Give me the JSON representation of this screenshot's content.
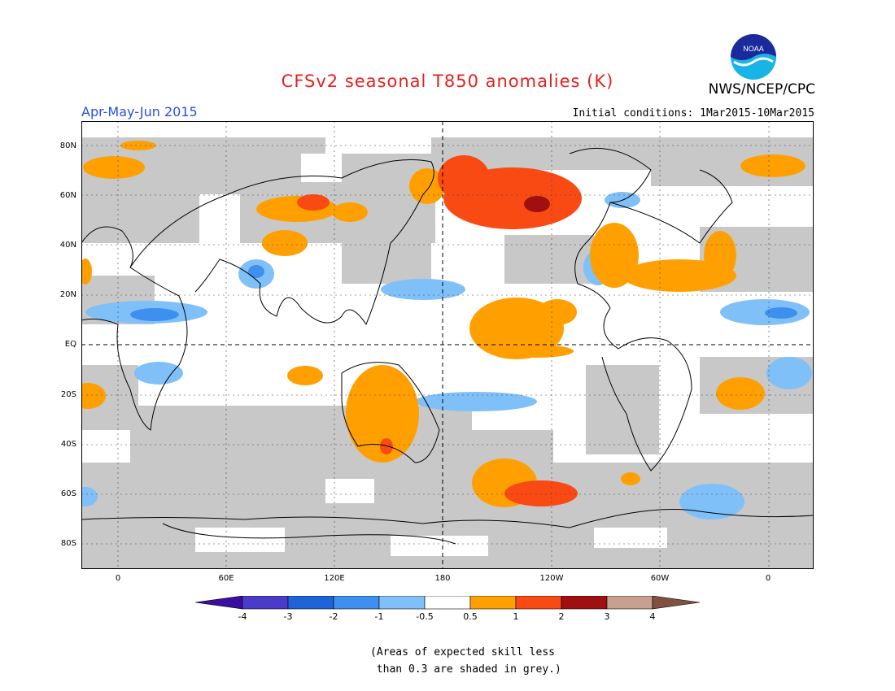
{
  "header": {
    "title": "CFSv2 seasonal T850 anomalies (K)",
    "agency": "NWS/NCEP/CPC",
    "logo_text": "NOAA",
    "season": "Apr-May-Jun 2015",
    "initial_conditions": "Initial conditions: 1Mar2015-10Mar2015"
  },
  "axes": {
    "lat_labels": [
      "80N",
      "60N",
      "40N",
      "20N",
      "EQ",
      "20S",
      "40S",
      "60S",
      "80S"
    ],
    "lon_labels": [
      "0",
      "60E",
      "120E",
      "180",
      "120W",
      "60W",
      "0"
    ]
  },
  "colorbar": {
    "labels": [
      "-4",
      "-3",
      "-2",
      "-1",
      "-0.5",
      "0.5",
      "1",
      "2",
      "3",
      "4"
    ],
    "colors": [
      "#3a0fa0",
      "#4a3cc8",
      "#1f63d8",
      "#3d8ff0",
      "#80c0f8",
      "#ffffff",
      "#ffa000",
      "#fa4a14",
      "#a01010",
      "#c8a090",
      "#805040"
    ]
  },
  "note": {
    "line1": "(Areas of expected skill less",
    "line2": " than 0.3 are shaded in grey.)"
  },
  "colors": {
    "grey": "#c8c8c8",
    "title": "#e8201c",
    "season": "#2a50e0"
  }
}
